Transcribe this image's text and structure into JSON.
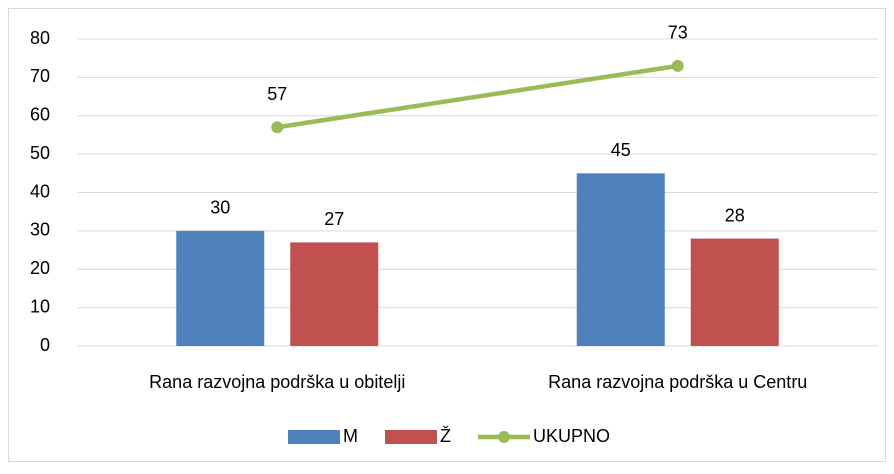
{
  "chart_data": {
    "type": "bar",
    "categories": [
      "Rana razvojna podrška u obitelji",
      "Rana razvojna podrška u Centru"
    ],
    "series": [
      {
        "name": "M",
        "color": "#4f81bd",
        "values": [
          30,
          45
        ]
      },
      {
        "name": "Ž",
        "color": "#c0504d",
        "values": [
          27,
          28
        ]
      },
      {
        "name": "UKUPNO",
        "color": "#9bbb59",
        "type": "line",
        "values": [
          57,
          73
        ]
      }
    ],
    "ylim": [
      0,
      80
    ],
    "yticks": [
      0,
      10,
      20,
      30,
      40,
      50,
      60,
      70,
      80
    ],
    "grid": true,
    "legend": "bottom"
  }
}
